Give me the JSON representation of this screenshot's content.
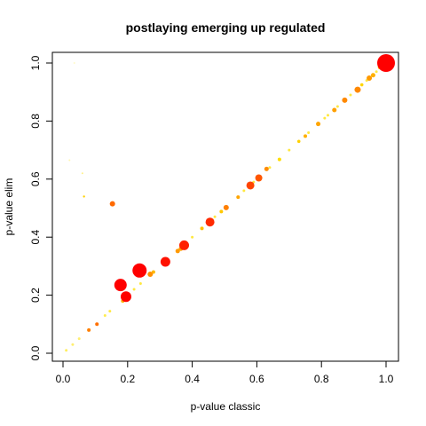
{
  "chart_data": {
    "type": "scatter",
    "title": "postlaying emerging up regulated",
    "xlabel": "p-value classic",
    "ylabel": "p-value elim",
    "xlim": [
      0.0,
      1.0
    ],
    "ylim": [
      0.0,
      1.0
    ],
    "x_ticks": [
      "0.0",
      "0.2",
      "0.4",
      "0.6",
      "0.8",
      "1.0"
    ],
    "y_ticks": [
      "0.0",
      "0.2",
      "0.4",
      "0.6",
      "0.8",
      "1.0"
    ],
    "grid": false,
    "legend": "none",
    "points": [
      {
        "x": 1.0,
        "y": 1.0,
        "size": 10,
        "color": "#ff0000"
      },
      {
        "x": 0.237,
        "y": 0.285,
        "size": 8,
        "color": "#ff0000"
      },
      {
        "x": 0.178,
        "y": 0.235,
        "size": 7,
        "color": "#ff0000"
      },
      {
        "x": 0.195,
        "y": 0.195,
        "size": 6,
        "color": "#ff0000"
      },
      {
        "x": 0.317,
        "y": 0.315,
        "size": 5.5,
        "color": "#ff1100"
      },
      {
        "x": 0.375,
        "y": 0.372,
        "size": 5.5,
        "color": "#ff2000"
      },
      {
        "x": 0.455,
        "y": 0.452,
        "size": 5,
        "color": "#ff2a00"
      },
      {
        "x": 0.58,
        "y": 0.578,
        "size": 4.5,
        "color": "#ff4400"
      },
      {
        "x": 0.606,
        "y": 0.604,
        "size": 4,
        "color": "#ff5500"
      },
      {
        "x": 0.153,
        "y": 0.515,
        "size": 3,
        "color": "#ff6a00"
      },
      {
        "x": 0.912,
        "y": 0.908,
        "size": 3.5,
        "color": "#ff8800"
      },
      {
        "x": 0.948,
        "y": 0.948,
        "size": 3,
        "color": "#ff9900"
      },
      {
        "x": 0.872,
        "y": 0.872,
        "size": 3,
        "color": "#ff8800"
      },
      {
        "x": 0.505,
        "y": 0.502,
        "size": 3,
        "color": "#ff8000"
      },
      {
        "x": 0.63,
        "y": 0.635,
        "size": 2.5,
        "color": "#ff8c00"
      },
      {
        "x": 0.84,
        "y": 0.838,
        "size": 2.5,
        "color": "#ffa000"
      },
      {
        "x": 0.79,
        "y": 0.79,
        "size": 2.5,
        "color": "#ffa500"
      },
      {
        "x": 0.75,
        "y": 0.748,
        "size": 2,
        "color": "#ffb000"
      },
      {
        "x": 0.27,
        "y": 0.272,
        "size": 3,
        "color": "#ff9000"
      },
      {
        "x": 0.355,
        "y": 0.352,
        "size": 2.5,
        "color": "#ff9a00"
      },
      {
        "x": 0.365,
        "y": 0.36,
        "size": 2.5,
        "color": "#ffa000"
      },
      {
        "x": 0.542,
        "y": 0.538,
        "size": 2,
        "color": "#ffa500"
      },
      {
        "x": 0.105,
        "y": 0.1,
        "size": 2,
        "color": "#ff7000"
      },
      {
        "x": 0.08,
        "y": 0.08,
        "size": 2,
        "color": "#ff8000"
      },
      {
        "x": 0.185,
        "y": 0.18,
        "size": 2,
        "color": "#ffb000"
      },
      {
        "x": 0.28,
        "y": 0.28,
        "size": 2,
        "color": "#ffb800"
      },
      {
        "x": 0.43,
        "y": 0.43,
        "size": 2,
        "color": "#ffbf00"
      },
      {
        "x": 0.49,
        "y": 0.488,
        "size": 2,
        "color": "#ffc800"
      },
      {
        "x": 0.67,
        "y": 0.668,
        "size": 2,
        "color": "#ffdd00"
      },
      {
        "x": 0.73,
        "y": 0.73,
        "size": 1.8,
        "color": "#ffd000"
      },
      {
        "x": 0.96,
        "y": 0.958,
        "size": 2.5,
        "color": "#ffb000"
      },
      {
        "x": 0.98,
        "y": 0.985,
        "size": 2,
        "color": "#ffd000"
      },
      {
        "x": 0.99,
        "y": 0.99,
        "size": 2,
        "color": "#ffe000"
      },
      {
        "x": 0.925,
        "y": 0.925,
        "size": 1.8,
        "color": "#ffd500"
      },
      {
        "x": 0.065,
        "y": 0.54,
        "size": 1.2,
        "color": "#ffd000"
      },
      {
        "x": 0.06,
        "y": 0.62,
        "size": 1.0,
        "color": "#fff08a"
      },
      {
        "x": 0.02,
        "y": 0.665,
        "size": 1.0,
        "color": "#fff6b0"
      },
      {
        "x": 0.035,
        "y": 1.0,
        "size": 1.0,
        "color": "#fffac8"
      },
      {
        "x": 0.01,
        "y": 0.01,
        "size": 1.5,
        "color": "#ffee60"
      },
      {
        "x": 0.03,
        "y": 0.03,
        "size": 1.5,
        "color": "#ffef70"
      },
      {
        "x": 0.05,
        "y": 0.05,
        "size": 1.5,
        "color": "#ffef70"
      },
      {
        "x": 0.13,
        "y": 0.13,
        "size": 1.5,
        "color": "#ffec50"
      },
      {
        "x": 0.145,
        "y": 0.145,
        "size": 1.5,
        "color": "#ffe840"
      },
      {
        "x": 0.22,
        "y": 0.22,
        "size": 1.5,
        "color": "#ffe840"
      },
      {
        "x": 0.24,
        "y": 0.24,
        "size": 1.5,
        "color": "#ffe840"
      },
      {
        "x": 0.32,
        "y": 0.32,
        "size": 1.5,
        "color": "#ffe840"
      },
      {
        "x": 0.4,
        "y": 0.4,
        "size": 1.5,
        "color": "#ffe840"
      },
      {
        "x": 0.47,
        "y": 0.47,
        "size": 1.5,
        "color": "#ffe840"
      },
      {
        "x": 0.56,
        "y": 0.56,
        "size": 1.5,
        "color": "#ffe840"
      },
      {
        "x": 0.59,
        "y": 0.59,
        "size": 1.5,
        "color": "#ffe840"
      },
      {
        "x": 0.64,
        "y": 0.64,
        "size": 1.5,
        "color": "#ffe840"
      },
      {
        "x": 0.7,
        "y": 0.7,
        "size": 1.5,
        "color": "#ffe840"
      },
      {
        "x": 0.76,
        "y": 0.76,
        "size": 1.5,
        "color": "#ffe840"
      },
      {
        "x": 0.81,
        "y": 0.81,
        "size": 1.5,
        "color": "#ffe840"
      },
      {
        "x": 0.82,
        "y": 0.82,
        "size": 1.5,
        "color": "#ffe840"
      },
      {
        "x": 0.85,
        "y": 0.85,
        "size": 1.5,
        "color": "#ffe840"
      },
      {
        "x": 0.89,
        "y": 0.89,
        "size": 1.5,
        "color": "#ffe840"
      },
      {
        "x": 0.94,
        "y": 0.94,
        "size": 1.5,
        "color": "#ffe840"
      },
      {
        "x": 0.97,
        "y": 0.97,
        "size": 1.5,
        "color": "#ffe840"
      }
    ]
  }
}
